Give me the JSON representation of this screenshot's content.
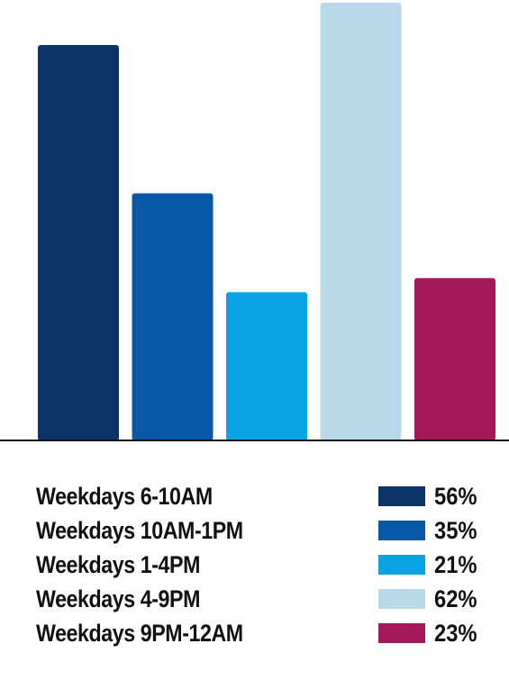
{
  "chart_data": {
    "type": "bar",
    "categories": [
      "Weekdays 6-10AM",
      "Weekdays 10AM-1PM",
      "Weekdays 1-4PM",
      "Weekdays 4-9PM",
      "Weekdays 9PM-12AM"
    ],
    "values": [
      56,
      35,
      21,
      62,
      23
    ],
    "value_labels": [
      "56%",
      "35%",
      "21%",
      "62%",
      "23%"
    ],
    "colors": [
      "#0a3566",
      "#0958a8",
      "#0aa3e3",
      "#b9d8ea",
      "#a3185a"
    ],
    "ylim": [
      0,
      62
    ],
    "grid": false,
    "legend_placement": "bottom"
  }
}
